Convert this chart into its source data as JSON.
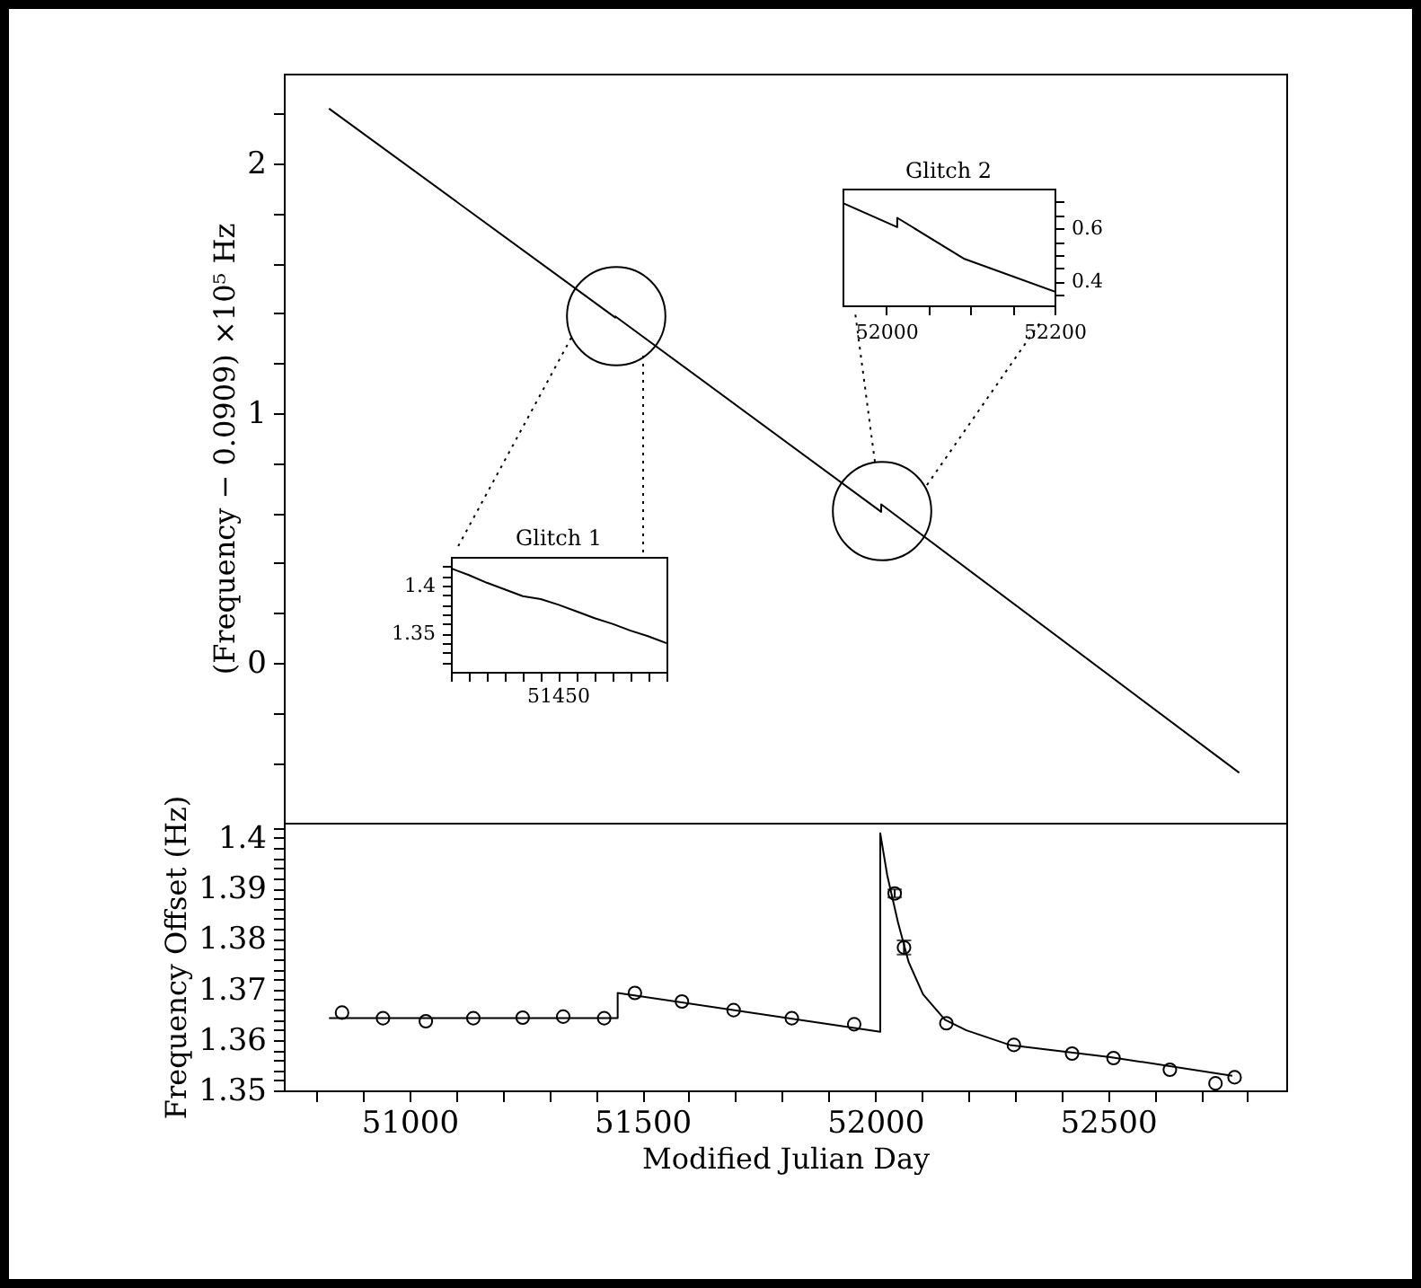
{
  "chart_data": [
    {
      "type": "line",
      "ylabel": "(Frequency − 0.0909) ×10⁵ Hz",
      "tick_labels": "y",
      "xlim": [
        50730,
        52883
      ],
      "ylim": [
        -0.64,
        2.36
      ],
      "xticks": [
        {
          "value": 50800,
          "label": null
        },
        {
          "value": 50900,
          "label": null
        },
        {
          "value": 51000,
          "label": null
        },
        {
          "value": 51100,
          "label": null
        },
        {
          "value": 51200,
          "label": null
        },
        {
          "value": 51300,
          "label": null
        },
        {
          "value": 51400,
          "label": null
        },
        {
          "value": 51500,
          "label": null
        },
        {
          "value": 51600,
          "label": null
        },
        {
          "value": 51700,
          "label": null
        },
        {
          "value": 51800,
          "label": null
        },
        {
          "value": 51900,
          "label": null
        },
        {
          "value": 52000,
          "label": null
        },
        {
          "value": 52100,
          "label": null
        },
        {
          "value": 52200,
          "label": null
        },
        {
          "value": 52300,
          "label": null
        },
        {
          "value": 52400,
          "label": null
        },
        {
          "value": 52500,
          "label": null
        },
        {
          "value": 52600,
          "label": null
        },
        {
          "value": 52700,
          "label": null
        },
        {
          "value": 52800,
          "label": null
        }
      ],
      "yticks": [
        {
          "value": -0.4,
          "label": null
        },
        {
          "value": -0.2,
          "label": null
        },
        0,
        {
          "value": 0.2,
          "label": null
        },
        {
          "value": 0.4,
          "label": null
        },
        {
          "value": 0.6,
          "label": null
        },
        {
          "value": 0.8,
          "label": null
        },
        1,
        {
          "value": 1.2,
          "label": null
        },
        {
          "value": 1.4,
          "label": null
        },
        {
          "value": 1.6,
          "label": null
        },
        {
          "value": 1.8,
          "label": null
        },
        2,
        {
          "value": 2.2,
          "label": null
        }
      ],
      "series": [
        {
          "type": "line",
          "color": "#000000",
          "x": [
            50827,
            51442,
            51442,
            52013,
            52013,
            52782
          ],
          "values": [
            2.22,
            1.383,
            1.388,
            0.605,
            0.635,
            -0.44
          ]
        }
      ]
    },
    {
      "type": "line",
      "title": "Glitch 1",
      "annotations": [
        "51450"
      ],
      "categories": [
        null,
        null,
        null,
        null,
        null,
        null,
        null,
        null,
        null,
        null,
        null,
        null,
        null
      ],
      "ylim": [
        1.31,
        1.43
      ],
      "yticks": [
        {
          "value": 1.32,
          "label": null
        },
        {
          "value": 1.33,
          "label": null
        },
        {
          "value": 1.34,
          "label": null
        },
        1.35,
        {
          "value": 1.36,
          "label": null
        },
        {
          "value": 1.37,
          "label": null
        },
        {
          "value": 1.38,
          "label": null
        },
        {
          "value": 1.39,
          "label": null
        },
        {
          "value": 1.4,
          "label": "1.4"
        },
        {
          "value": 1.41,
          "label": null
        },
        {
          "value": 1.42,
          "label": null
        }
      ],
      "series": [
        {
          "type": "line",
          "color": "#000000",
          "values": [
            1.418,
            1.411,
            1.403,
            1.396,
            1.389,
            1.386,
            1.38,
            1.373,
            1.366,
            1.36,
            1.353,
            1.347,
            1.34
          ]
        }
      ]
    },
    {
      "type": "line",
      "title": "Glitch 2",
      "xlim": [
        51948,
        52200
      ],
      "ylim": [
        0.31,
        0.75
      ],
      "xticks": [
        52000,
        {
          "value": 52050,
          "label": null
        },
        {
          "value": 52100,
          "label": null
        },
        {
          "value": 52150,
          "label": null
        },
        52200
      ],
      "yticks": [
        {
          "value": 0.35,
          "label": null
        },
        0.4,
        {
          "value": 0.45,
          "label": null
        },
        {
          "value": 0.5,
          "label": null
        },
        {
          "value": 0.55,
          "label": null
        },
        0.6,
        {
          "value": 0.65,
          "label": null
        },
        {
          "value": 0.7,
          "label": null
        }
      ],
      "series": [
        {
          "type": "line",
          "color": "#000000",
          "x": [
            51948,
            52013,
            52013,
            52093,
            52200
          ],
          "values": [
            0.696,
            0.605,
            0.64,
            0.485,
            0.362
          ]
        }
      ]
    },
    {
      "type": "line",
      "xlabel": "Modified Julian Day",
      "ylabel": "Frequency Offset (Hz)",
      "xlim": [
        50730,
        52883
      ],
      "ylim": [
        1.35,
        1.403
      ],
      "xticks": [
        {
          "value": 50800,
          "label": null
        },
        {
          "value": 50900,
          "label": null
        },
        51000,
        {
          "value": 51100,
          "label": null
        },
        {
          "value": 51200,
          "label": null
        },
        {
          "value": 51300,
          "label": null
        },
        {
          "value": 51400,
          "label": null
        },
        51500,
        {
          "value": 51600,
          "label": null
        },
        {
          "value": 51700,
          "label": null
        },
        {
          "value": 51800,
          "label": null
        },
        {
          "value": 51900,
          "label": null
        },
        52000,
        {
          "value": 52100,
          "label": null
        },
        {
          "value": 52200,
          "label": null
        },
        {
          "value": 52300,
          "label": null
        },
        {
          "value": 52400,
          "label": null
        },
        52500,
        {
          "value": 52600,
          "label": null
        },
        {
          "value": 52700,
          "label": null
        },
        {
          "value": 52800,
          "label": null
        }
      ],
      "yticks": [
        1.35,
        {
          "value": 1.352,
          "label": null
        },
        {
          "value": 1.354,
          "label": null
        },
        {
          "value": 1.356,
          "label": null
        },
        {
          "value": 1.358,
          "label": null
        },
        1.36,
        {
          "value": 1.362,
          "label": null
        },
        {
          "value": 1.364,
          "label": null
        },
        {
          "value": 1.366,
          "label": null
        },
        {
          "value": 1.368,
          "label": null
        },
        1.37,
        {
          "value": 1.372,
          "label": null
        },
        {
          "value": 1.374,
          "label": null
        },
        {
          "value": 1.376,
          "label": null
        },
        {
          "value": 1.378,
          "label": null
        },
        1.38,
        {
          "value": 1.382,
          "label": null
        },
        {
          "value": 1.384,
          "label": null
        },
        {
          "value": 1.386,
          "label": null
        },
        {
          "value": 1.388,
          "label": null
        },
        1.39,
        {
          "value": 1.392,
          "label": null
        },
        {
          "value": 1.394,
          "label": null
        },
        {
          "value": 1.396,
          "label": null
        },
        {
          "value": 1.398,
          "label": null
        },
        {
          "value": 1.4,
          "label": "1.4"
        },
        {
          "value": 1.402,
          "label": null
        }
      ],
      "series": [
        {
          "type": "line",
          "color": "#000000",
          "x": [
            50827,
            51447,
            51447,
            52011,
            52011,
            52026,
            52049,
            52072,
            52103,
            52150,
            52196,
            52289,
            52505,
            52767
          ],
          "values": [
            1.3643,
            1.3643,
            1.3693,
            1.3616,
            1.4009,
            1.3926,
            1.3833,
            1.3754,
            1.369,
            1.364,
            1.3619,
            1.359,
            1.3566,
            1.3529
          ]
        },
        {
          "type": "scatter",
          "color": "#000000",
          "marker": "circle",
          "x": [
            50855,
            50943,
            51035,
            51137,
            51243,
            51330,
            51418,
            51484,
            51585,
            51696,
            51821,
            51955,
            52042,
            52062,
            52153,
            52298,
            52423,
            52512,
            52633,
            52731,
            52772
          ],
          "values": [
            1.3654,
            1.3643,
            1.3637,
            1.3643,
            1.3644,
            1.3646,
            1.3643,
            1.3693,
            1.3676,
            1.3659,
            1.3643,
            1.3631,
            1.389,
            1.3783,
            1.3633,
            1.359,
            1.3573,
            1.3564,
            1.3541,
            1.3514,
            1.3526
          ],
          "errors": [
            null,
            null,
            null,
            null,
            null,
            null,
            null,
            null,
            null,
            null,
            null,
            null,
            0.0008,
            0.0014,
            null,
            null,
            null,
            null,
            null,
            null,
            null
          ]
        }
      ]
    }
  ]
}
